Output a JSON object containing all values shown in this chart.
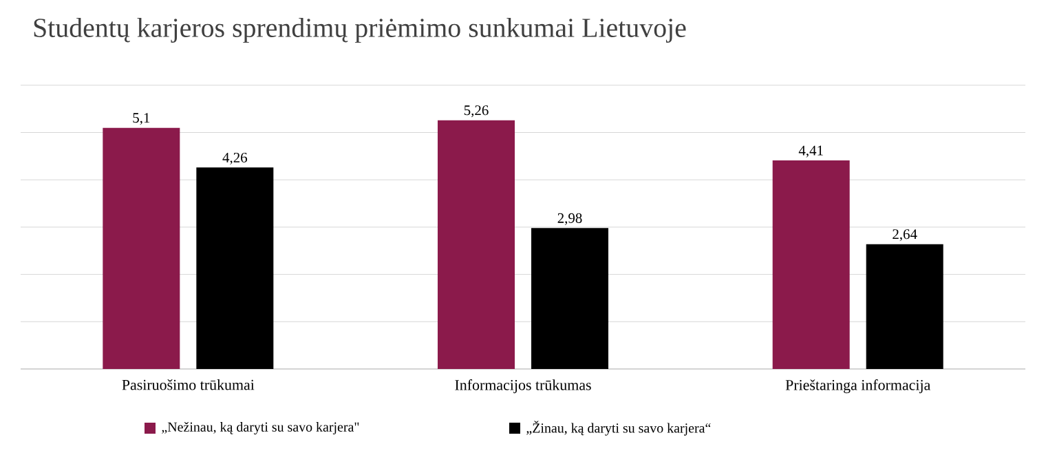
{
  "chart_data": {
    "type": "bar",
    "title": "Studentų karjeros sprendimų priėmimo sunkumai Lietuvoje",
    "categories": [
      "Pasiruošimo trūkumai",
      "Informacijos trūkumas",
      "Prieštaringa informacija"
    ],
    "series": [
      {
        "name": "„Nežinau, ką daryti su savo karjera\"",
        "color": "#8b1a4b",
        "values": [
          5.1,
          5.26,
          4.41
        ],
        "value_labels": [
          "5,1",
          "5,26",
          "4,41"
        ]
      },
      {
        "name": "„Žinau, ką daryti su savo karjera“",
        "color": "#000000",
        "values": [
          4.26,
          2.98,
          2.64
        ],
        "value_labels": [
          "4,26",
          "2,98",
          "2,64"
        ]
      }
    ],
    "tick_labels": "x",
    "grid": "y",
    "legend": "bottom"
  }
}
